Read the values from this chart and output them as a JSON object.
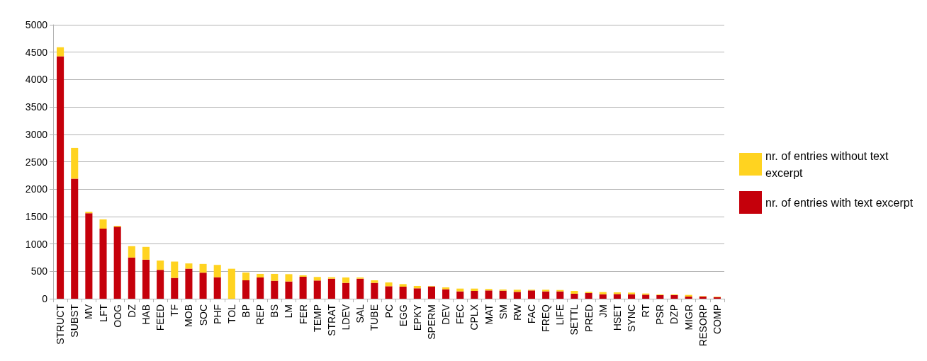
{
  "chart_data": {
    "type": "bar",
    "stacked": true,
    "grid": "y",
    "legend": "right",
    "categories": [
      "STRUCT",
      "SUBST",
      "MV",
      "LFT",
      "OOG",
      "DZ",
      "HAB",
      "FEED",
      "TF",
      "MOB",
      "SOC",
      "PHF",
      "TOL",
      "BP",
      "REP",
      "BS",
      "LM",
      "FER",
      "TEMP",
      "STRAT",
      "LDEV",
      "SAL",
      "TUBE",
      "PC",
      "EGG",
      "EPKY",
      "SPERM",
      "DEV",
      "FEC",
      "CPLX",
      "MAT",
      "SM",
      "RW",
      "FAC",
      "FREQ",
      "LIFE",
      "SETTL",
      "PRED",
      "JM",
      "HSET",
      "SYNC",
      "RT",
      "PSR",
      "DZP",
      "MIGR",
      "RESORP",
      "COMP"
    ],
    "ylim": [
      0,
      5000
    ],
    "yticks": [
      0,
      500,
      1000,
      1500,
      2000,
      2500,
      3000,
      3500,
      4000,
      4500,
      5000
    ],
    "series": [
      {
        "name": "nr. of entries with text excerpt",
        "color": "#c5000b",
        "values": [
          4425,
          2191,
          1560,
          1279,
          1314,
          752,
          713,
          527,
          380,
          549,
          475,
          392,
          null,
          336,
          388,
          328,
          315,
          401,
          332,
          366,
          289,
          366,
          289,
          228,
          220,
          190,
          224,
          172,
          134,
          142,
          151,
          147,
          125,
          151,
          134,
          134,
          91,
          103,
          82,
          86,
          82,
          73,
          65,
          65,
          39,
          39,
          30
        ]
      },
      {
        "name": "nr. of entries without text excerpt",
        "color": "#ffd320",
        "values": [
          165,
          562,
          26,
          169,
          17,
          207,
          233,
          169,
          298,
          95,
          160,
          225,
          547,
          142,
          65,
          125,
          133,
          26,
          65,
          26,
          99,
          22,
          47,
          69,
          47,
          43,
          9,
          35,
          51,
          43,
          26,
          21,
          39,
          13,
          30,
          25,
          51,
          22,
          39,
          30,
          30,
          22,
          13,
          13,
          30,
          8,
          9
        ]
      }
    ]
  }
}
